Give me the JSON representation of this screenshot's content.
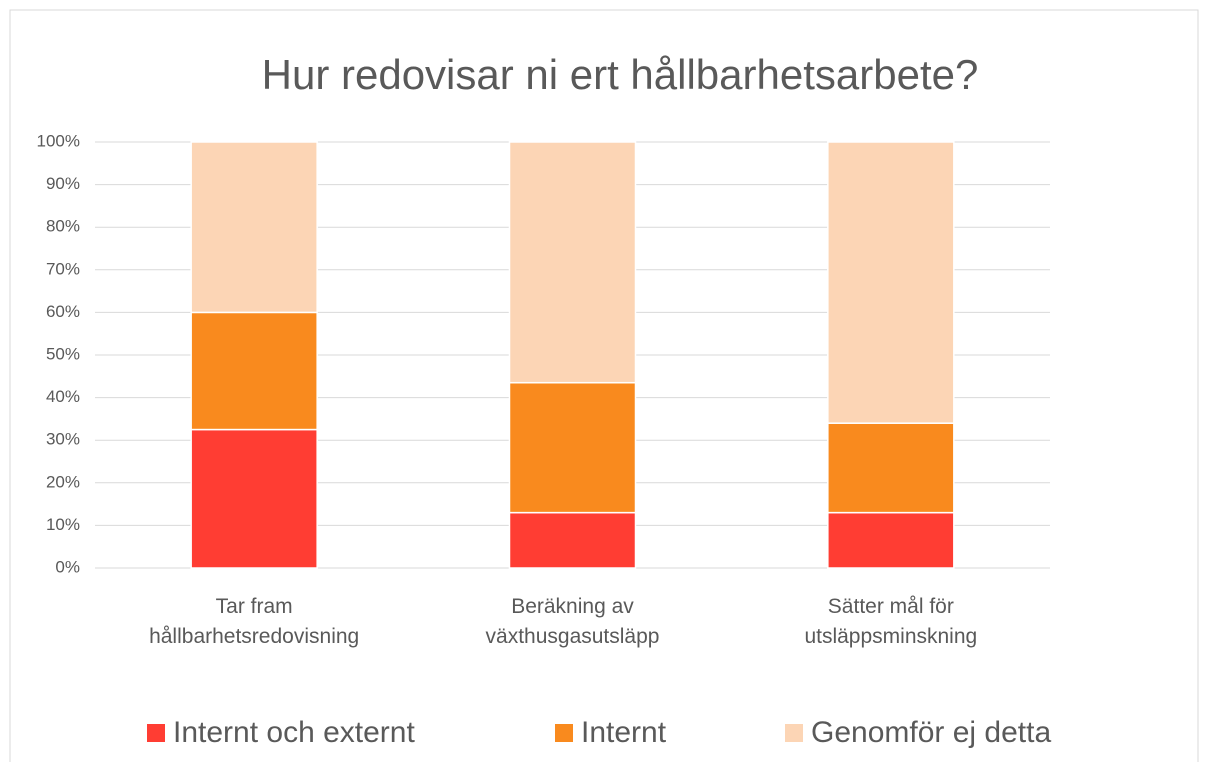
{
  "chart_data": {
    "type": "stacked_bar",
    "title": "Hur redovisar ni ert hållbarhetsarbete?",
    "categories": [
      "Tar fram hållbarhetsredovisning",
      "Beräkning av växthusgasutsläpp",
      "Sätter mål för utsläppsminskning"
    ],
    "series": [
      {
        "name": "Internt och externt",
        "color": "#ff3d33",
        "values": [
          32.5,
          13,
          13
        ]
      },
      {
        "name": "Internt",
        "color": "#f98a1e",
        "values": [
          27.5,
          30.5,
          21
        ]
      },
      {
        "name": "Genomför ej detta",
        "color": "#fcd5b5",
        "values": [
          40,
          56.5,
          66
        ]
      }
    ],
    "ylim": [
      0,
      100
    ],
    "yticks": [
      {
        "value": 0,
        "label": "0%"
      },
      {
        "value": 10,
        "label": "10%"
      },
      {
        "value": 20,
        "label": "20%"
      },
      {
        "value": 30,
        "label": "30%"
      },
      {
        "value": 40,
        "label": "40%"
      },
      {
        "value": 50,
        "label": "50%"
      },
      {
        "value": 60,
        "label": "60%"
      },
      {
        "value": 70,
        "label": "70%"
      },
      {
        "value": 80,
        "label": "80%"
      },
      {
        "value": 90,
        "label": "90%"
      },
      {
        "value": 100,
        "label": "100%"
      }
    ],
    "grid": true,
    "legend": "bottom"
  }
}
